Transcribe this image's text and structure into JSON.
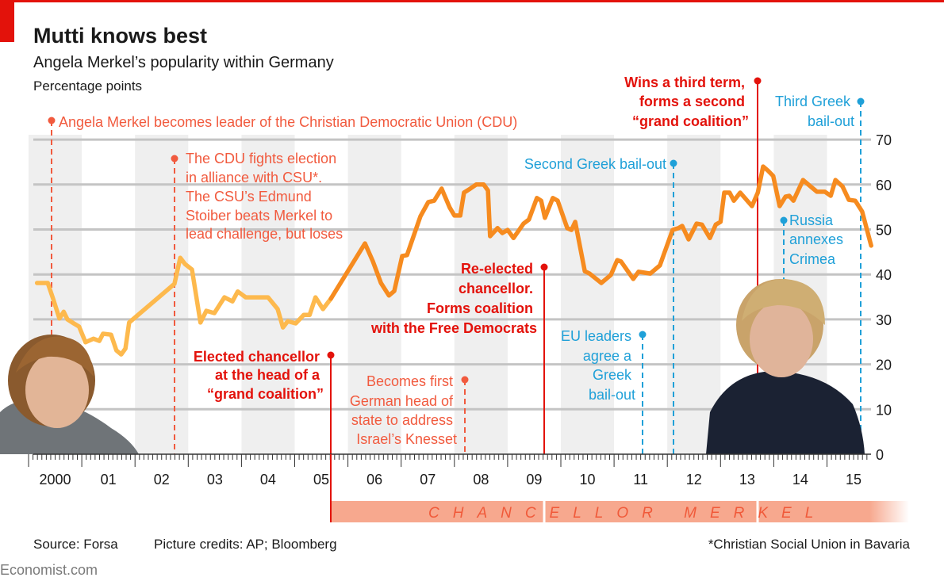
{
  "header": {
    "title": "Mutti knows best",
    "subtitle": "Angela Merkel’s popularity within Germany",
    "unit": "Percentage points"
  },
  "colors": {
    "brand_red": "#e3120b",
    "pre_chancellor_line": "#fdb94d",
    "chancellor_line": "#f68b1f",
    "domestic_event": "#f15a3e",
    "foreign_event": "#1fa0d8",
    "chancellor_bar": "#f7a88e"
  },
  "annotations": {
    "cdu_leader": [
      "Angela Merkel becomes leader of the Christian Democratic Union (CDU)"
    ],
    "cdu_election": [
      "The CDU fights election",
      "in alliance with CSU*.",
      "The CSU’s Edmund",
      "Stoiber beats Merkel to",
      "lead challenge, but loses"
    ],
    "elected": [
      "Elected chancellor",
      "at the head of a",
      "“grand coalition”"
    ],
    "knesset": [
      "Becomes first",
      "German head of",
      "state to address",
      "Israel’s Knesset"
    ],
    "reelected": [
      "Re-elected",
      "chancellor.",
      "Forms coalition",
      "with the Free Democrats"
    ],
    "eu_leaders": [
      "EU leaders",
      "agree a",
      "Greek",
      "bail-out"
    ],
    "second_greek": [
      "Second Greek bail-out"
    ],
    "third_term": [
      "Wins a third term,",
      "forms a second",
      "“grand coalition”"
    ],
    "russia": [
      "Russia",
      "annexes",
      "Crimea"
    ],
    "third_greek": [
      "Third Greek",
      "bail-out"
    ]
  },
  "chancellor_bar": {
    "label": "CHANCELLOR MERKEL"
  },
  "footer": {
    "source": "Source: Forsa",
    "credits": "Picture credits: AP; Bloomberg",
    "footnote": "*Christian Social Union in Bavaria",
    "brand": "Economist.com"
  },
  "chart_data": {
    "type": "line",
    "title": "Mutti knows best",
    "subtitle": "Angela Merkel’s popularity within Germany",
    "ylabel": "Percentage points",
    "ylim": [
      0,
      70
    ],
    "yticks": [
      0,
      10,
      20,
      30,
      40,
      50,
      60,
      70
    ],
    "xlim": [
      2000,
      2016
    ],
    "xtick_labels": [
      "2000",
      "01",
      "02",
      "03",
      "04",
      "05",
      "06",
      "07",
      "08",
      "09",
      "10",
      "11",
      "12",
      "13",
      "14",
      "15"
    ],
    "y_axis_side": "right",
    "grid": true,
    "alternate_year_shading": true,
    "series": [
      {
        "period": "before chancellorship",
        "color": "#fdb94d",
        "points": [
          [
            2000.16,
            38.1
          ],
          [
            2000.36,
            38.1
          ],
          [
            2000.46,
            34.6
          ],
          [
            2000.58,
            30.2
          ],
          [
            2000.66,
            31.7
          ],
          [
            2000.73,
            30.0
          ],
          [
            2000.85,
            29.1
          ],
          [
            2000.95,
            28.4
          ],
          [
            2001.07,
            24.9
          ],
          [
            2001.22,
            25.7
          ],
          [
            2001.33,
            25.2
          ],
          [
            2001.4,
            26.8
          ],
          [
            2001.55,
            26.6
          ],
          [
            2001.65,
            23.1
          ],
          [
            2001.74,
            22.2
          ],
          [
            2001.82,
            23.5
          ],
          [
            2001.89,
            29.3
          ],
          [
            2002.74,
            37.9
          ],
          [
            2002.85,
            43.7
          ],
          [
            2002.94,
            42.3
          ],
          [
            2003.07,
            41.1
          ],
          [
            2003.23,
            29.3
          ],
          [
            2003.34,
            31.9
          ],
          [
            2003.49,
            31.4
          ],
          [
            2003.68,
            34.9
          ],
          [
            2003.83,
            34.0
          ],
          [
            2003.93,
            36.2
          ],
          [
            2004.08,
            34.9
          ],
          [
            2004.5,
            34.9
          ],
          [
            2004.68,
            32.3
          ],
          [
            2004.78,
            28.2
          ],
          [
            2004.87,
            29.6
          ],
          [
            2005.02,
            29.1
          ],
          [
            2005.17,
            31.0
          ],
          [
            2005.28,
            31.0
          ],
          [
            2005.39,
            34.9
          ],
          [
            2005.53,
            32.3
          ],
          [
            2005.68,
            34.6
          ]
        ]
      },
      {
        "period": "as chancellor",
        "color": "#f68b1f",
        "points": [
          [
            2005.68,
            34.6
          ],
          [
            2006.32,
            46.9
          ],
          [
            2006.47,
            42.9
          ],
          [
            2006.62,
            38.1
          ],
          [
            2006.77,
            35.3
          ],
          [
            2006.87,
            36.3
          ],
          [
            2007.02,
            44.1
          ],
          [
            2007.11,
            44.3
          ],
          [
            2007.36,
            52.9
          ],
          [
            2007.51,
            56.1
          ],
          [
            2007.62,
            56.4
          ],
          [
            2007.76,
            59.1
          ],
          [
            2007.91,
            54.9
          ],
          [
            2008.0,
            53.1
          ],
          [
            2008.11,
            53.1
          ],
          [
            2008.18,
            58.2
          ],
          [
            2008.3,
            59.1
          ],
          [
            2008.41,
            60.0
          ],
          [
            2008.55,
            60.0
          ],
          [
            2008.63,
            58.7
          ],
          [
            2008.67,
            48.5
          ],
          [
            2008.81,
            50.3
          ],
          [
            2008.9,
            49.2
          ],
          [
            2009.0,
            49.9
          ],
          [
            2009.11,
            48.1
          ],
          [
            2009.3,
            51.3
          ],
          [
            2009.4,
            52.2
          ],
          [
            2009.55,
            57.0
          ],
          [
            2009.63,
            56.4
          ],
          [
            2009.7,
            52.6
          ],
          [
            2009.85,
            57.0
          ],
          [
            2009.94,
            56.4
          ],
          [
            2010.12,
            50.3
          ],
          [
            2010.2,
            49.9
          ],
          [
            2010.27,
            51.7
          ],
          [
            2010.45,
            40.7
          ],
          [
            2010.54,
            40.2
          ],
          [
            2010.76,
            38.1
          ],
          [
            2010.94,
            39.9
          ],
          [
            2011.06,
            43.2
          ],
          [
            2011.13,
            42.9
          ],
          [
            2011.36,
            39.0
          ],
          [
            2011.46,
            40.6
          ],
          [
            2011.56,
            40.4
          ],
          [
            2011.68,
            40.2
          ],
          [
            2011.86,
            42.0
          ],
          [
            2012.1,
            49.9
          ],
          [
            2012.21,
            50.3
          ],
          [
            2012.28,
            50.8
          ],
          [
            2012.4,
            47.8
          ],
          [
            2012.55,
            51.3
          ],
          [
            2012.65,
            51.1
          ],
          [
            2012.8,
            48.1
          ],
          [
            2012.91,
            51.1
          ],
          [
            2013.0,
            51.7
          ],
          [
            2013.07,
            58.2
          ],
          [
            2013.17,
            58.2
          ],
          [
            2013.25,
            56.4
          ],
          [
            2013.37,
            58.2
          ],
          [
            2013.59,
            55.2
          ],
          [
            2013.7,
            58.2
          ],
          [
            2013.8,
            64.0
          ],
          [
            2013.89,
            63.1
          ],
          [
            2013.99,
            61.9
          ],
          [
            2014.11,
            55.2
          ],
          [
            2014.22,
            57.3
          ],
          [
            2014.29,
            57.5
          ],
          [
            2014.37,
            56.4
          ],
          [
            2014.55,
            61.0
          ],
          [
            2014.69,
            59.6
          ],
          [
            2014.81,
            58.4
          ],
          [
            2014.96,
            58.4
          ],
          [
            2015.07,
            57.5
          ],
          [
            2015.16,
            61.0
          ],
          [
            2015.29,
            59.6
          ],
          [
            2015.41,
            56.6
          ],
          [
            2015.53,
            56.4
          ],
          [
            2015.66,
            54.0
          ],
          [
            2015.83,
            46.4
          ]
        ]
      }
    ]
  }
}
